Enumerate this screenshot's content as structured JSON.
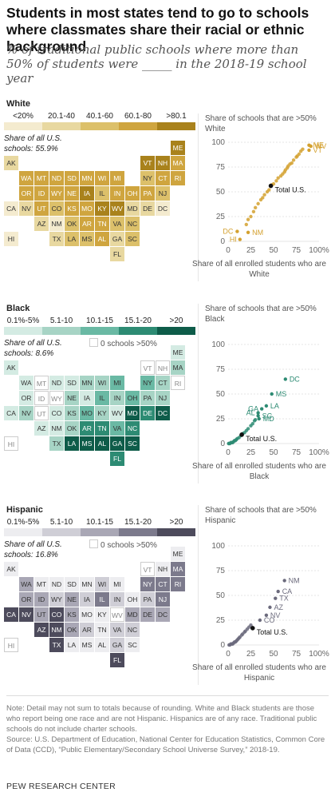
{
  "title": "Students in most states tend to go to schools where classmates share their racial or ethnic background",
  "subtitle": "% of traditional public schools where more than 50% of students were _____ in the 2018-19 school year",
  "note": "Note: Detail may not sum to totals because of rounding. White and Black students are those who report being one race and are not Hispanic. Hispanics are of any race. Traditional public schools do not include charter schools.",
  "source": "Source: U.S. Department of Education, National Center for Education Statistics, Common Core of Data (CCD), “Public Elementary/Secondary School Universe Survey,” 2018-19.",
  "footer": "PEW RESEARCH CENTER",
  "colors": {
    "white": [
      "#f4ebcf",
      "#e8d8a0",
      "#dcc06a",
      "#cfa53f",
      "#a9821c"
    ],
    "black": [
      "#d4ebe3",
      "#a7d4c5",
      "#6ab9a4",
      "#2d8b73",
      "#0e5c49"
    ],
    "hispanic": [
      "#ededf0",
      "#cfced6",
      "#a9a7b5",
      "#7c7a8c",
      "#4d4b5c"
    ]
  },
  "sections": [
    {
      "key": "white",
      "label": "White",
      "legend": [
        "<20%",
        "20.1-40",
        "40.1-60",
        "60.1-80",
        ">80.1"
      ],
      "share_note": "Share of all U.S. schools: 55.9%",
      "zero_note": "",
      "scatter_title": "Share of schools that are >50% White",
      "scatter_xlabel": "Share of all enrolled students who are White",
      "point_color": "#d4a12f",
      "total_label": "Total U.S."
    },
    {
      "key": "black",
      "label": "Black",
      "legend": [
        "0.1%-5%",
        "5.1-10",
        "10.1-15",
        "15.1-20",
        ">20"
      ],
      "share_note": "Share of all U.S. schools: 8.6%",
      "zero_note": "0 schools >50%",
      "scatter_title": "Share of schools that are >50% Black",
      "scatter_xlabel": "Share of all enrolled students who are Black",
      "point_color": "#2d8b73",
      "total_label": "Total U.S."
    },
    {
      "key": "hispanic",
      "label": "Hispanic",
      "legend": [
        "0.1%-5%",
        "5.1-10",
        "10.1-15",
        "15.1-20",
        ">20"
      ],
      "share_note": "Share of all U.S. schools: 16.8%",
      "zero_note": "0 schools >50%",
      "scatter_title": "Share of schools that are >50% Hispanic",
      "scatter_xlabel": "Share of all enrolled students who are Hispanic",
      "point_color": "#6b6a7c",
      "total_label": "Total U.S."
    }
  ],
  "chart_data": [
    {
      "type": "heatmap",
      "title": "White",
      "states": {
        "AK": 1,
        "ME": 4,
        "VT": 4,
        "NH": 4,
        "MA": 3,
        "WA": 3,
        "MT": 3,
        "ND": 3,
        "SD": 3,
        "MN": 3,
        "WI": 3,
        "MI": 3,
        "NY": 2,
        "CT": 3,
        "RI": 3,
        "OR": 3,
        "ID": 3,
        "WY": 3,
        "NE": 3,
        "IA": 4,
        "IL": 2,
        "IN": 3,
        "OH": 3,
        "PA": 3,
        "NJ": 2,
        "CA": 0,
        "NV": 1,
        "UT": 3,
        "CO": 2,
        "KS": 3,
        "MO": 3,
        "KY": 4,
        "WV": 4,
        "MD": 1,
        "DE": 1,
        "DC": 0,
        "AZ": 1,
        "NM": 0,
        "OK": 2,
        "AR": 3,
        "TN": 3,
        "VA": 2,
        "NC": 2,
        "HI": 0,
        "TX": 1,
        "LA": 2,
        "MS": 2,
        "AL": 3,
        "GA": 1,
        "SC": 2,
        "FL": 1
      }
    },
    {
      "type": "scatter",
      "title": "Share of schools that are >50% White",
      "xlabel": "Share of all enrolled students who are White",
      "xlim": [
        0,
        100
      ],
      "ylim": [
        0,
        100
      ],
      "labeled_points": [
        {
          "label": "ME",
          "x": 89,
          "y": 97
        },
        {
          "label": "WV",
          "x": 91,
          "y": 96
        },
        {
          "label": "VT",
          "x": 89,
          "y": 92
        },
        {
          "label": "Total U.S.",
          "x": 47,
          "y": 56
        },
        {
          "label": "DC",
          "x": 10,
          "y": 10
        },
        {
          "label": "NM",
          "x": 22,
          "y": 9
        },
        {
          "label": "HI",
          "x": 13,
          "y": 2
        }
      ],
      "points": [
        [
          82,
          93
        ],
        [
          80,
          91
        ],
        [
          78,
          88
        ],
        [
          76,
          86
        ],
        [
          75,
          85
        ],
        [
          72,
          82
        ],
        [
          70,
          79
        ],
        [
          68,
          78
        ],
        [
          66,
          76
        ],
        [
          65,
          74
        ],
        [
          63,
          72
        ],
        [
          62,
          70
        ],
        [
          60,
          68
        ],
        [
          58,
          66
        ],
        [
          55,
          64
        ],
        [
          53,
          61
        ],
        [
          50,
          58
        ],
        [
          48,
          57
        ],
        [
          45,
          52
        ],
        [
          43,
          50
        ],
        [
          40,
          47
        ],
        [
          38,
          44
        ],
        [
          36,
          42
        ],
        [
          33,
          38
        ],
        [
          30,
          34
        ],
        [
          28,
          30
        ],
        [
          25,
          25
        ],
        [
          22,
          22
        ],
        [
          20,
          17
        ]
      ]
    },
    {
      "type": "heatmap",
      "title": "Black",
      "states": {
        "AK": 0,
        "ME": 0,
        "VT": -1,
        "NH": -1,
        "MA": 1,
        "WA": 0,
        "MT": -1,
        "ND": 0,
        "SD": 0,
        "MN": 1,
        "WI": 1,
        "MI": 2,
        "NY": 2,
        "CT": 1,
        "RI": -1,
        "OR": 0,
        "ID": -1,
        "WY": -1,
        "NE": 1,
        "IA": 0,
        "IL": 2,
        "IN": 1,
        "OH": 2,
        "PA": 1,
        "NJ": 1,
        "CA": 0,
        "NV": 1,
        "UT": -1,
        "CO": 0,
        "KS": 1,
        "MO": 2,
        "KY": 1,
        "WV": 0,
        "MD": 4,
        "DE": 3,
        "DC": 4,
        "AZ": 0,
        "NM": 0,
        "OK": 1,
        "AR": 3,
        "TN": 3,
        "VA": 2,
        "NC": 3,
        "HI": -1,
        "TX": 1,
        "LA": 4,
        "MS": 4,
        "AL": 4,
        "GA": 4,
        "SC": 4,
        "FL": 3
      }
    },
    {
      "type": "scatter",
      "title": "Share of schools that are >50% Black",
      "xlabel": "Share of all enrolled students who are Black",
      "xlim": [
        0,
        100
      ],
      "ylim": [
        0,
        100
      ],
      "labeled_points": [
        {
          "label": "DC",
          "x": 63,
          "y": 65
        },
        {
          "label": "MS",
          "x": 48,
          "y": 50
        },
        {
          "label": "LA",
          "x": 42,
          "y": 38
        },
        {
          "label": "GA",
          "x": 37,
          "y": 35
        },
        {
          "label": "SC",
          "x": 33,
          "y": 28
        },
        {
          "label": "AL",
          "x": 33,
          "y": 31
        },
        {
          "label": "MD",
          "x": 34,
          "y": 25
        },
        {
          "label": "Total U.S.",
          "x": 15,
          "y": 9
        }
      ],
      "points": [
        [
          25,
          18
        ],
        [
          22,
          15
        ],
        [
          20,
          13
        ],
        [
          18,
          11
        ],
        [
          16,
          10
        ],
        [
          14,
          8
        ],
        [
          12,
          6
        ],
        [
          10,
          5
        ],
        [
          9,
          4
        ],
        [
          8,
          3
        ],
        [
          7,
          3
        ],
        [
          6,
          2
        ],
        [
          5,
          1
        ],
        [
          4,
          1
        ],
        [
          3,
          1
        ],
        [
          2,
          0
        ],
        [
          1,
          0
        ],
        [
          0.5,
          0
        ],
        [
          27,
          20
        ],
        [
          29,
          23
        ],
        [
          30,
          24
        ]
      ]
    },
    {
      "type": "heatmap",
      "title": "Hispanic",
      "states": {
        "AK": 0,
        "ME": 0,
        "VT": -1,
        "NH": 0,
        "MA": 3,
        "WA": 2,
        "MT": 0,
        "ND": 0,
        "SD": 0,
        "MN": 0,
        "WI": 1,
        "MI": 0,
        "NY": 3,
        "CT": 3,
        "RI": 3,
        "OR": 2,
        "ID": 2,
        "WY": 1,
        "NE": 2,
        "IA": 1,
        "IL": 3,
        "IN": 1,
        "OH": 0,
        "PA": 1,
        "NJ": 3,
        "CA": 4,
        "NV": 4,
        "UT": 2,
        "CO": 4,
        "KS": 2,
        "MO": 0,
        "KY": 0,
        "WV": -1,
        "MD": 2,
        "DE": 2,
        "DC": 2,
        "AZ": 4,
        "NM": 4,
        "OK": 2,
        "AR": 1,
        "TN": 0,
        "VA": 1,
        "NC": 1,
        "HI": -1,
        "TX": 4,
        "LA": 0,
        "MS": 0,
        "AL": 0,
        "GA": 1,
        "SC": 0,
        "FL": 4
      }
    },
    {
      "type": "scatter",
      "title": "Share of schools that are >50% Hispanic",
      "xlabel": "Share of all enrolled students who are Hispanic",
      "xlim": [
        0,
        100
      ],
      "ylim": [
        0,
        100
      ],
      "labeled_points": [
        {
          "label": "NM",
          "x": 62,
          "y": 65
        },
        {
          "label": "CA",
          "x": 55,
          "y": 54
        },
        {
          "label": "TX",
          "x": 52,
          "y": 47
        },
        {
          "label": "AZ",
          "x": 46,
          "y": 38
        },
        {
          "label": "NV",
          "x": 42,
          "y": 30
        },
        {
          "label": "CO",
          "x": 35,
          "y": 25
        },
        {
          "label": "Total U.S.",
          "x": 27,
          "y": 17
        }
      ],
      "points": [
        [
          25,
          20
        ],
        [
          23,
          18
        ],
        [
          21,
          16
        ],
        [
          19,
          14
        ],
        [
          18,
          13
        ],
        [
          16,
          11
        ],
        [
          15,
          10
        ],
        [
          13,
          8
        ],
        [
          12,
          7
        ],
        [
          11,
          6
        ],
        [
          10,
          5
        ],
        [
          9,
          4
        ],
        [
          8,
          3
        ],
        [
          7,
          3
        ],
        [
          6,
          2
        ],
        [
          5,
          1
        ],
        [
          4,
          1
        ],
        [
          3,
          1
        ],
        [
          2,
          0
        ],
        [
          1,
          0
        ]
      ]
    }
  ]
}
